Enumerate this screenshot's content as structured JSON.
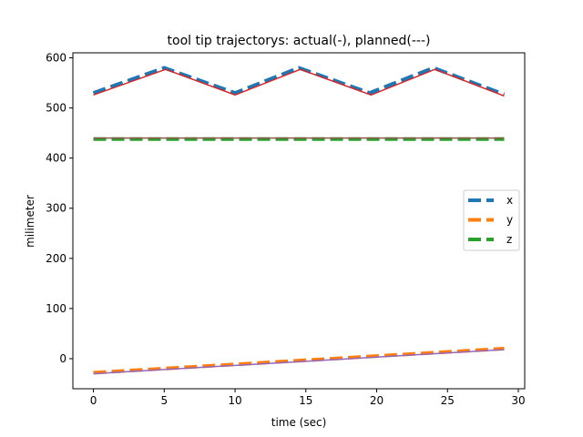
{
  "chart_data": {
    "type": "line",
    "title": "tool tip trajectorys: actual(-), planned(---)",
    "xlabel": "time (sec)",
    "ylabel": "milimeter",
    "xlim": [
      -1.45,
      30.45
    ],
    "ylim": [
      -60,
      610
    ],
    "xticks": [
      0,
      5,
      10,
      15,
      20,
      25,
      30
    ],
    "yticks": [
      0,
      100,
      200,
      300,
      400,
      500,
      600
    ],
    "grid": false,
    "legend_position": "center-right",
    "series": [
      {
        "name": "x",
        "style": "planned",
        "color": "#1f77b4",
        "x": [
          0,
          5,
          10,
          14.5,
          19.5,
          24,
          29
        ],
        "y": [
          530,
          580,
          530,
          580,
          530,
          580,
          527
        ]
      },
      {
        "name": "y",
        "style": "planned",
        "color": "#ff7f0e",
        "x": [
          0,
          29
        ],
        "y": [
          -28,
          20
        ]
      },
      {
        "name": "z",
        "style": "planned",
        "color": "#2ca02c",
        "x": [
          0,
          29
        ],
        "y": [
          438,
          438
        ]
      },
      {
        "style": "actual",
        "color": "#d62728",
        "x": [
          0,
          5.1,
          10,
          14.6,
          19.6,
          24.1,
          29
        ],
        "y": [
          526,
          577,
          526,
          577,
          526,
          577,
          524
        ]
      },
      {
        "style": "actual",
        "color": "#9467bd",
        "x": [
          0,
          29
        ],
        "y": [
          -30,
          18
        ]
      },
      {
        "style": "actual",
        "color": "#8c564b",
        "x": [
          0,
          29
        ],
        "y": [
          440,
          440
        ]
      }
    ]
  }
}
